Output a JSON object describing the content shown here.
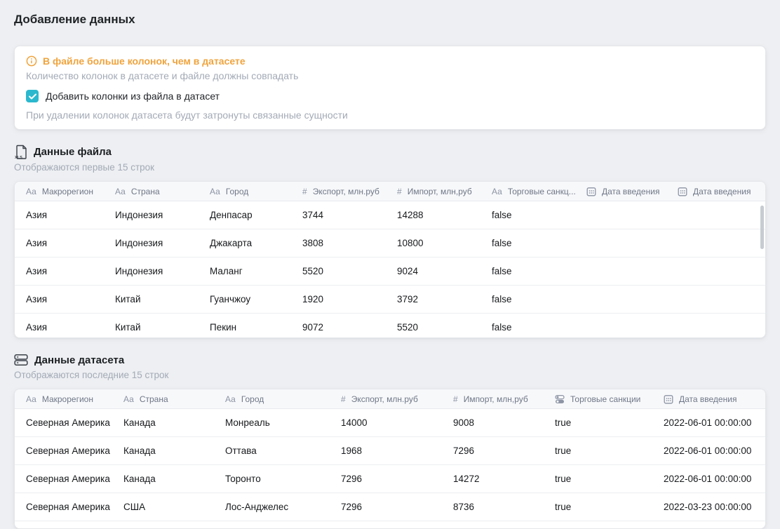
{
  "page": {
    "title": "Добавление данных"
  },
  "colors": {
    "warning": "#F0A33C",
    "checkbox": "#2BB8CE"
  },
  "warning_card": {
    "title": "В файле больше колонок, чем в датасете",
    "subtitle": "Количество колонок в датасете и файле должны совпадать",
    "checkbox_label": "Добавить колонки из файла в датасет",
    "checkbox_checked": true,
    "note": "При удалении колонок датасета будут затронуты связанные сущности"
  },
  "file_section": {
    "title": "Данные файла",
    "subtitle": "Отображаются первые 15 строк",
    "table": {
      "columns": [
        {
          "type": "text",
          "label": "Макрорегион"
        },
        {
          "type": "text",
          "label": "Страна"
        },
        {
          "type": "text",
          "label": "Город"
        },
        {
          "type": "number",
          "label": "Экспорт, млн.руб"
        },
        {
          "type": "number",
          "label": "Импорт, млн,руб"
        },
        {
          "type": "text",
          "label": "Торговые санкц..."
        },
        {
          "type": "date",
          "label": "Дата введения"
        },
        {
          "type": "date",
          "label": "Дата введения"
        }
      ],
      "rows": [
        [
          "Азия",
          "Индонезия",
          "Денпасар",
          "3744",
          "14288",
          "false",
          "",
          ""
        ],
        [
          "Азия",
          "Индонезия",
          "Джакарта",
          "3808",
          "10800",
          "false",
          "",
          ""
        ],
        [
          "Азия",
          "Индонезия",
          "Маланг",
          "5520",
          "9024",
          "false",
          "",
          ""
        ],
        [
          "Азия",
          "Китай",
          "Гуанчжоу",
          "1920",
          "3792",
          "false",
          "",
          ""
        ],
        [
          "Азия",
          "Китай",
          "Пекин",
          "9072",
          "5520",
          "false",
          "",
          ""
        ]
      ]
    }
  },
  "dataset_section": {
    "title": "Данные датасета",
    "subtitle": "Отображаются последние 15 строк",
    "table": {
      "columns": [
        {
          "type": "text",
          "label": "Макрорегион"
        },
        {
          "type": "text",
          "label": "Страна"
        },
        {
          "type": "text",
          "label": "Город"
        },
        {
          "type": "number",
          "label": "Экспорт, млн.руб"
        },
        {
          "type": "number",
          "label": "Импорт, млн,руб"
        },
        {
          "type": "boolean",
          "label": "Торговые санкции"
        },
        {
          "type": "date",
          "label": "Дата введения"
        }
      ],
      "rows": [
        [
          "Северная Америка",
          "Канада",
          "Монреаль",
          "14000",
          "9008",
          "true",
          "2022-06-01 00:00:00"
        ],
        [
          "Северная Америка",
          "Канада",
          "Оттава",
          "1968",
          "7296",
          "true",
          "2022-06-01 00:00:00"
        ],
        [
          "Северная Америка",
          "Канада",
          "Торонто",
          "7296",
          "14272",
          "true",
          "2022-06-01 00:00:00"
        ],
        [
          "Северная Америка",
          "США",
          "Лос-Анджелес",
          "7296",
          "8736",
          "true",
          "2022-03-23 00:00:00"
        ]
      ]
    }
  }
}
